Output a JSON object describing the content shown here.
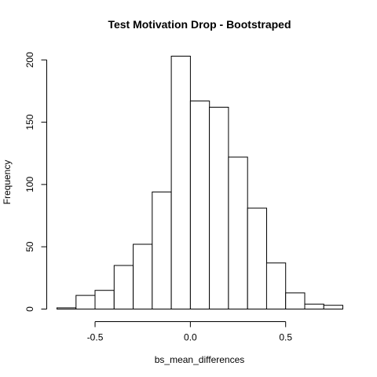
{
  "chart_data": {
    "type": "bar",
    "title": "Test Motivation Drop - Bootstraped",
    "xlabel": "bs_mean_differences",
    "ylabel": "Frequency",
    "bin_edges": [
      -0.7,
      -0.6,
      -0.5,
      -0.4,
      -0.3,
      -0.2,
      -0.1,
      0.0,
      0.1,
      0.2,
      0.3,
      0.4,
      0.5,
      0.6,
      0.7,
      0.8
    ],
    "values": [
      1,
      11,
      15,
      35,
      52,
      94,
      203,
      167,
      162,
      122,
      81,
      37,
      13,
      4,
      3
    ],
    "x_ticks": [
      -0.5,
      0.0,
      0.5
    ],
    "x_tick_labels": [
      "-0.5",
      "0.0",
      "0.5"
    ],
    "y_ticks": [
      0,
      50,
      100,
      150,
      200
    ],
    "y_tick_labels": [
      "0",
      "50",
      "100",
      "150",
      "200"
    ],
    "xlim": [
      -0.7,
      0.8
    ],
    "ylim": [
      0,
      203
    ],
    "grid": false,
    "bar_fill": "#ffffff",
    "bar_stroke": "#000000"
  }
}
